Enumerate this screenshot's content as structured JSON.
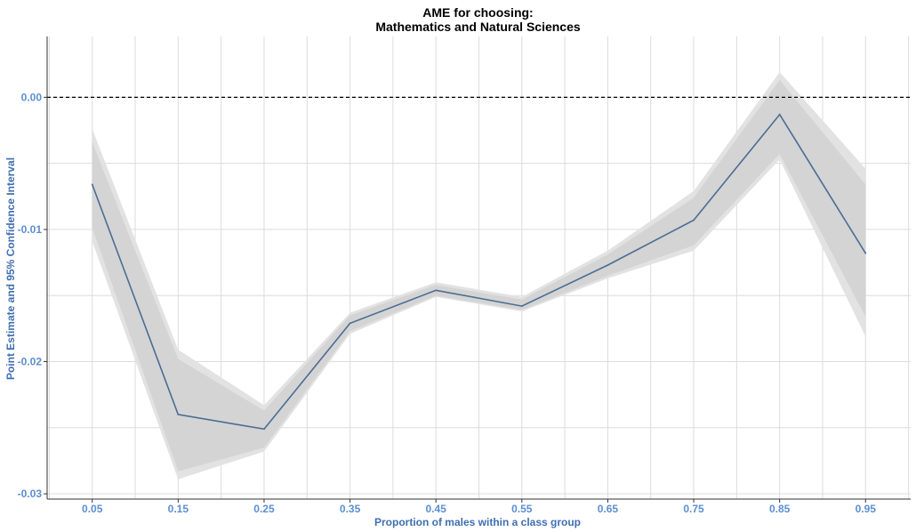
{
  "chart_data": {
    "type": "line",
    "title": [
      "AME for choosing:",
      "Mathematics and Natural Sciences"
    ],
    "xlabel": "Proportion of males within a class group",
    "ylabel": "Point Estimate and 95% Confidence Interval",
    "x_tick_labels": [
      "0.05",
      "0.15",
      "0.25",
      "0.35",
      "0.45",
      "0.55",
      "0.65",
      "0.75",
      "0.85",
      "0.95"
    ],
    "y_tick_labels": [
      "0.00",
      "-0.01",
      "-0.02",
      "-0.03"
    ],
    "y_ticks": [
      0.0,
      -0.01,
      -0.02,
      -0.03
    ],
    "xlim": [
      -0.0025,
      1.0025
    ],
    "ylim": [
      -0.0304,
      0.0046
    ],
    "reference_line": 0.0,
    "grid": true,
    "x": [
      0.05,
      0.15,
      0.25,
      0.35,
      0.45,
      0.55,
      0.65,
      0.75,
      0.85,
      0.95
    ],
    "series": [
      {
        "estimate": [
          -0.0066,
          -0.024,
          -0.0251,
          -0.0171,
          -0.0146,
          -0.0158,
          -0.0127,
          -0.0093,
          -0.0013,
          -0.0118
        ],
        "ci_lower_outer": [
          -0.0109,
          -0.0289,
          -0.0268,
          -0.0179,
          -0.0151,
          -0.0162,
          -0.0137,
          -0.0116,
          -0.0047,
          -0.0181
        ],
        "ci_upper_outer": [
          -0.0024,
          -0.0191,
          -0.0233,
          -0.0163,
          -0.014,
          -0.0151,
          -0.0116,
          -0.0071,
          0.0019,
          -0.0054
        ],
        "ci_lower_inner": [
          -0.0099,
          -0.0283,
          -0.0265,
          -0.0177,
          -0.015,
          -0.0161,
          -0.0135,
          -0.0112,
          -0.0043,
          -0.0166
        ],
        "ci_upper_inner": [
          -0.0034,
          -0.0198,
          -0.0237,
          -0.0165,
          -0.0142,
          -0.0153,
          -0.0119,
          -0.0076,
          0.0013,
          -0.0066
        ]
      }
    ],
    "colors": {
      "line": "#4a6d94",
      "ci_outer": "#e2e2e2",
      "ci_inner": "#d4d4d4",
      "grid": "#dcdcdc",
      "axis": "#333333",
      "reference": "#000000"
    }
  }
}
